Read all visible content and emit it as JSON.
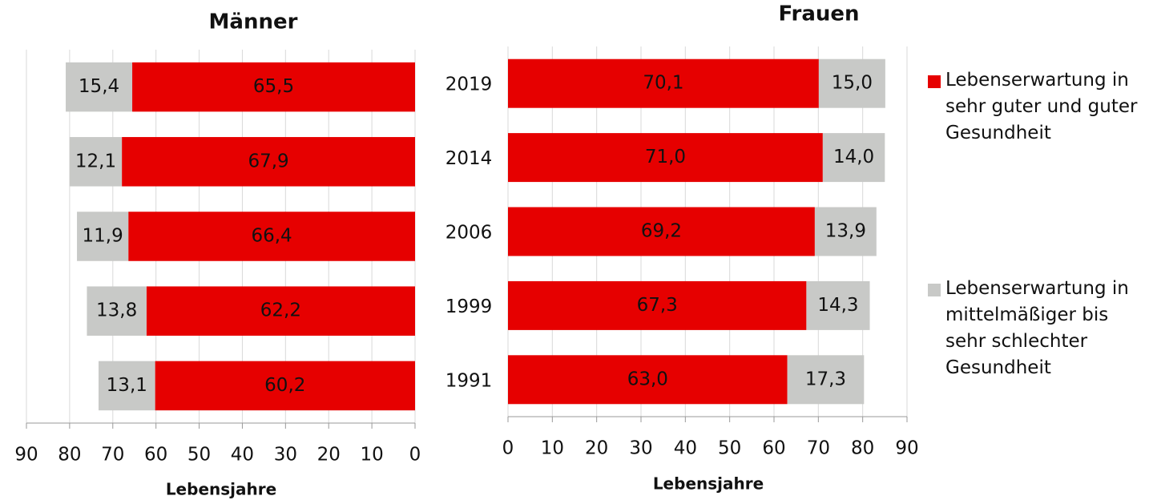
{
  "chart_data": [
    {
      "type": "bar",
      "orientation": "horizontal",
      "stacked": true,
      "x_reversed": true,
      "grid": true,
      "title": "Männer",
      "xlabel": "Lebensjahre",
      "series": [
        {
          "color": "#e60000",
          "values": [
            65.5,
            67.9,
            66.4,
            62.2,
            60.2
          ],
          "value_labels": [
            "65,5",
            "67,9",
            "66,4",
            "62,2",
            "60,2"
          ]
        },
        {
          "color": "#c8c9c7",
          "values": [
            15.4,
            12.1,
            11.9,
            13.8,
            13.1
          ],
          "value_labels": [
            "15,4",
            "12,1",
            "11,9",
            "13,8",
            "13,1"
          ]
        }
      ],
      "xlim": [
        0,
        90
      ],
      "xticks": [
        0,
        10,
        20,
        30,
        40,
        50,
        60,
        70,
        80,
        90
      ]
    },
    {
      "type": "bar",
      "orientation": "horizontal",
      "stacked": true,
      "x_reversed": false,
      "grid": true,
      "title": "Frauen",
      "xlabel": "Lebensjahre",
      "categories": [
        "2019",
        "2014",
        "2006",
        "1999",
        "1991"
      ],
      "series": [
        {
          "name": "Lebenserwartung in sehr guter und guter Gesundheit",
          "color": "#e60000",
          "values": [
            70.1,
            71.0,
            69.2,
            67.3,
            63.0
          ],
          "value_labels": [
            "70,1",
            "71,0",
            "69,2",
            "67,3",
            "63,0"
          ]
        },
        {
          "name": "Lebenserwartung in mittelmäßiger bis sehr schlechter Gesundheit",
          "color": "#c8c9c7",
          "values": [
            15.0,
            14.0,
            13.9,
            14.3,
            17.3
          ],
          "value_labels": [
            "15,0",
            "14,0",
            "13,9",
            "14,3",
            "17,3"
          ]
        }
      ],
      "xlim": [
        0,
        90
      ],
      "xticks": [
        0,
        10,
        20,
        30,
        40,
        50,
        60,
        70,
        80,
        90
      ]
    }
  ]
}
